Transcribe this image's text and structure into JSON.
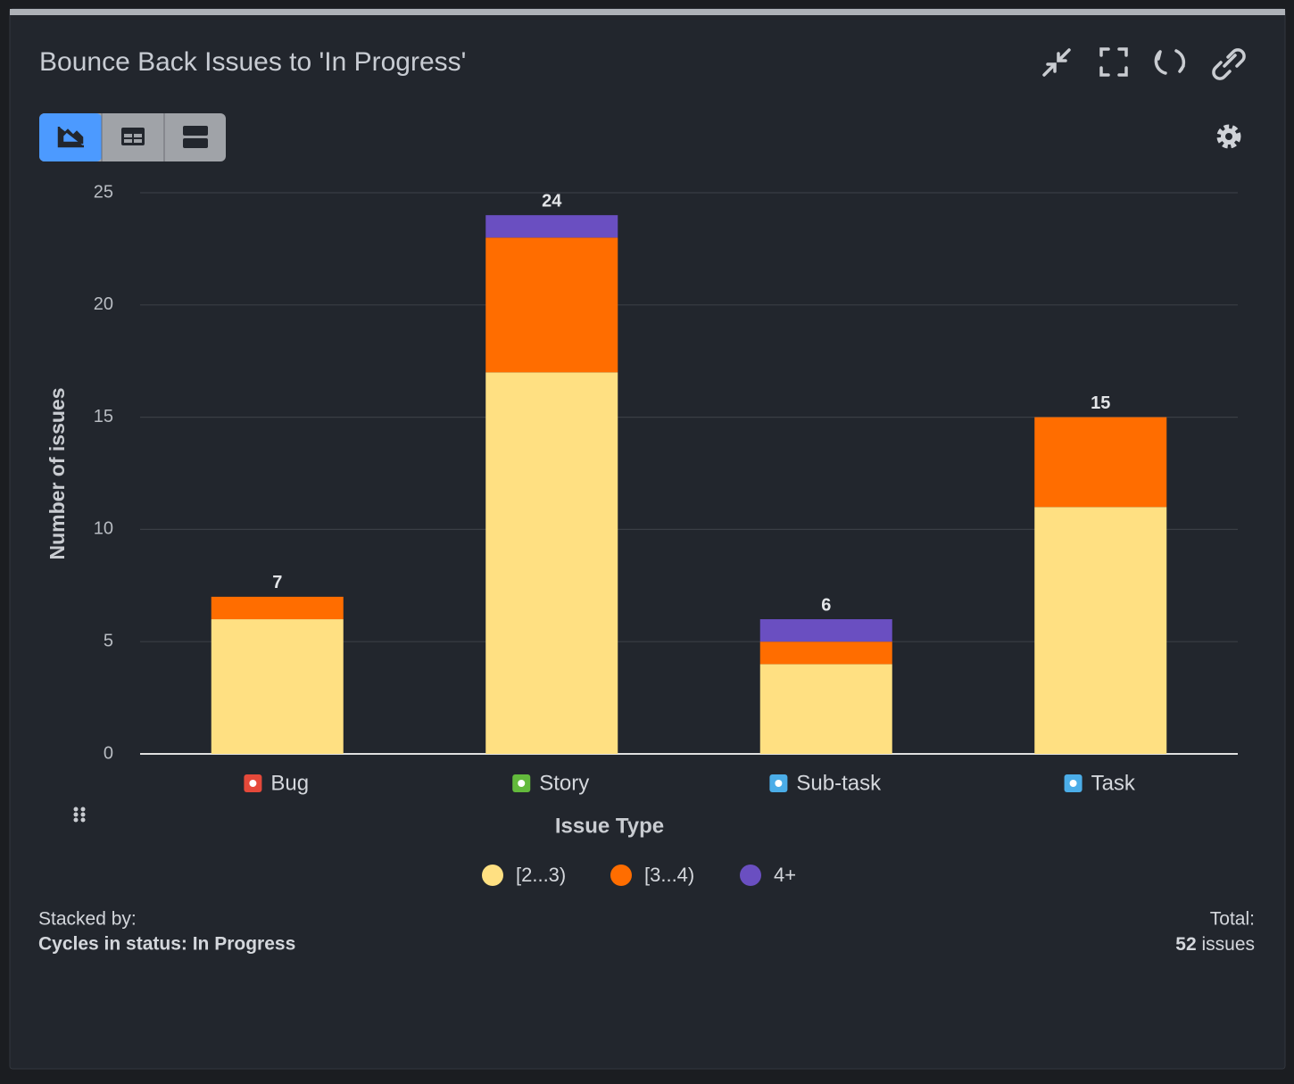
{
  "header": {
    "title": "Bounce Back Issues to 'In Progress'"
  },
  "chart_data": {
    "type": "stacked_bar",
    "categories": [
      "Bug",
      "Story",
      "Sub-task",
      "Task"
    ],
    "series": [
      {
        "name": "[2...3)",
        "color": "#ffe082",
        "values": [
          6,
          17,
          4,
          11
        ]
      },
      {
        "name": "[3...4)",
        "color": "#ff6d00",
        "values": [
          1,
          6,
          1,
          4
        ]
      },
      {
        "name": "4+",
        "color": "#6a4fc1",
        "values": [
          0,
          1,
          1,
          0
        ]
      }
    ],
    "totals": [
      7,
      24,
      6,
      15
    ],
    "category_icon_colors": [
      "#e5493a",
      "#63ba3c",
      "#4bade8",
      "#4bade8"
    ],
    "xlabel": "Issue Type",
    "ylabel": "Number of issues",
    "ylim": [
      0,
      25
    ],
    "yticks": [
      0,
      5,
      10,
      15,
      20,
      25
    ],
    "grid": true
  },
  "footer": {
    "stacked_by_label": "Stacked by:",
    "stacked_by_value": "Cycles in status: In Progress",
    "total_label": "Total:",
    "total_count": 52,
    "total_unit": "issues"
  }
}
